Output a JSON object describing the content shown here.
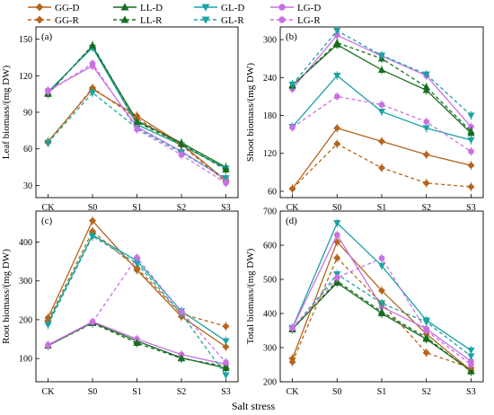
{
  "legend": [
    {
      "name": "GG-D",
      "color": "#b5651d",
      "marker": "diamond",
      "dash": false
    },
    {
      "name": "LL-D",
      "color": "#176d1e",
      "marker": "triangle-up",
      "dash": false
    },
    {
      "name": "GL-D",
      "color": "#1aa3a3",
      "marker": "triangle-down",
      "dash": false
    },
    {
      "name": "LG-D",
      "color": "#c971e4",
      "marker": "circle",
      "dash": false
    },
    {
      "name": "GG-R",
      "color": "#b5651d",
      "marker": "diamond",
      "dash": true
    },
    {
      "name": "LL-R",
      "color": "#176d1e",
      "marker": "triangle-up",
      "dash": true
    },
    {
      "name": "GL-R",
      "color": "#1aa3a3",
      "marker": "triangle-down",
      "dash": true
    },
    {
      "name": "LG-R",
      "color": "#c971e4",
      "marker": "circle",
      "dash": true
    }
  ],
  "shared_xlabel": "Salt stress",
  "chart_data": [
    {
      "type": "line",
      "panel": "(a)",
      "ylabel": "Leaf biomass/(mg DW)",
      "categories": [
        "CK",
        "S0",
        "S1",
        "S2",
        "S3"
      ],
      "ylim": [
        20,
        160
      ],
      "yticks": [
        30,
        60,
        90,
        120,
        150
      ],
      "series": [
        {
          "name": "GG-D",
          "values": [
            66,
            109,
            87,
            64,
            34
          ]
        },
        {
          "name": "LL-D",
          "values": [
            106,
            144,
            83,
            65,
            45
          ]
        },
        {
          "name": "GL-D",
          "values": [
            107,
            143,
            80,
            63,
            44
          ]
        },
        {
          "name": "LG-D",
          "values": [
            108,
            128,
            78,
            58,
            35
          ]
        },
        {
          "name": "GG-R",
          "values": [
            65,
            110,
            85,
            63,
            33
          ]
        },
        {
          "name": "LL-R",
          "values": [
            105,
            145,
            82,
            64,
            43
          ]
        },
        {
          "name": "GL-R",
          "values": [
            65,
            106,
            77,
            57,
            36
          ]
        },
        {
          "name": "LG-R",
          "values": [
            107,
            130,
            76,
            55,
            32
          ]
        }
      ]
    },
    {
      "type": "line",
      "panel": "(b)",
      "ylabel": "Shoot biomass/(mg DW)",
      "categories": [
        "CK",
        "S0",
        "S1",
        "S2",
        "S3"
      ],
      "ylim": [
        50,
        320
      ],
      "yticks": [
        60,
        120,
        180,
        240,
        300
      ],
      "series": [
        {
          "name": "GG-D",
          "values": [
            64,
            160,
            139,
            118,
            101
          ]
        },
        {
          "name": "LL-D",
          "values": [
            228,
            292,
            252,
            220,
            152
          ]
        },
        {
          "name": "GL-D",
          "values": [
            162,
            243,
            186,
            160,
            141
          ]
        },
        {
          "name": "LG-D",
          "values": [
            222,
            307,
            274,
            243,
            162
          ]
        },
        {
          "name": "GG-R",
          "values": [
            64,
            135,
            97,
            73,
            67
          ]
        },
        {
          "name": "LL-R",
          "values": [
            227,
            295,
            270,
            225,
            155
          ]
        },
        {
          "name": "GL-R",
          "values": [
            229,
            314,
            275,
            245,
            180
          ]
        },
        {
          "name": "LG-R",
          "values": [
            161,
            210,
            197,
            170,
            123
          ]
        }
      ]
    },
    {
      "type": "line",
      "panel": "(c)",
      "ylabel": "Root biomass/(mg DW)",
      "categories": [
        "CK",
        "S0",
        "S1",
        "S2",
        "S3"
      ],
      "ylim": [
        40,
        480
      ],
      "yticks": [
        100,
        200,
        300,
        400
      ],
      "series": [
        {
          "name": "GG-D",
          "values": [
            205,
            455,
            328,
            208,
            130
          ]
        },
        {
          "name": "LL-D",
          "values": [
            133,
            193,
            145,
            102,
            75
          ]
        },
        {
          "name": "GL-D",
          "values": [
            192,
            418,
            352,
            222,
            145
          ]
        },
        {
          "name": "LG-D",
          "values": [
            135,
            195,
            150,
            110,
            85
          ]
        },
        {
          "name": "GG-R",
          "values": [
            198,
            428,
            333,
            215,
            183
          ]
        },
        {
          "name": "LL-R",
          "values": [
            133,
            191,
            140,
            100,
            80
          ]
        },
        {
          "name": "GL-R",
          "values": [
            187,
            415,
            345,
            215,
            57
          ]
        },
        {
          "name": "LG-R",
          "values": [
            134,
            194,
            360,
            220,
            90
          ]
        }
      ]
    },
    {
      "type": "line",
      "panel": "(d)",
      "ylabel": "Total biomass/(mg DW)",
      "categories": [
        "CK",
        "S0",
        "S1",
        "S2",
        "S3"
      ],
      "ylim": [
        200,
        700
      ],
      "yticks": [
        200,
        300,
        400,
        500,
        600,
        700
      ],
      "series": [
        {
          "name": "GG-D",
          "values": [
            268,
            610,
            467,
            340,
            233
          ]
        },
        {
          "name": "LL-D",
          "values": [
            355,
            490,
            400,
            325,
            232
          ]
        },
        {
          "name": "GL-D",
          "values": [
            358,
            665,
            540,
            380,
            292
          ]
        },
        {
          "name": "LG-D",
          "values": [
            357,
            630,
            420,
            355,
            260
          ]
        },
        {
          "name": "GG-R",
          "values": [
            258,
            563,
            430,
            285,
            240
          ]
        },
        {
          "name": "LL-R",
          "values": [
            353,
            495,
            405,
            330,
            230
          ]
        },
        {
          "name": "GL-R",
          "values": [
            355,
            515,
            430,
            375,
            275
          ]
        },
        {
          "name": "LG-R",
          "values": [
            357,
            505,
            562,
            350,
            250
          ]
        }
      ]
    }
  ]
}
